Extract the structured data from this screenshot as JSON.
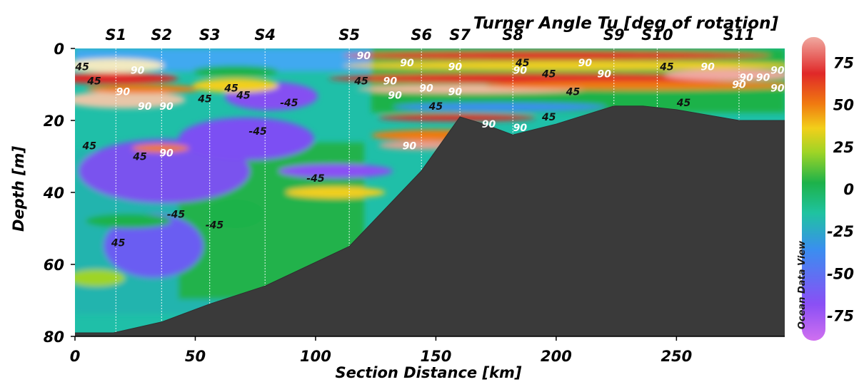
{
  "chart_data": {
    "type": "heatmap",
    "title": "Turner Angle Tu [deg of rotation]",
    "xlabel": "Section Distance [km]",
    "ylabel": "Depth [m]",
    "xlim": [
      0,
      295
    ],
    "ylim": [
      80,
      0
    ],
    "x_ticks": [
      "0",
      "50",
      "100",
      "150",
      "200",
      "250"
    ],
    "x_tick_values": [
      0,
      50,
      100,
      150,
      200,
      250
    ],
    "y_ticks": [
      "0",
      "20",
      "40",
      "60",
      "80"
    ],
    "y_tick_values": [
      0,
      20,
      40,
      60,
      80
    ],
    "colorbar": {
      "ticks": [
        "75",
        "50",
        "25",
        "0",
        "-25",
        "-50",
        "-75"
      ],
      "tick_values": [
        75,
        50,
        25,
        0,
        -25,
        -50,
        -75
      ],
      "range": [
        -90,
        90
      ],
      "watermark": "Ocean Data View",
      "colors": [
        "#d070f0",
        "#8a4ff5",
        "#3a8ef0",
        "#1fc3a0",
        "#1db24a",
        "#9ed426",
        "#f2cf1a",
        "#f07a10",
        "#e02828",
        "#f0a9a0"
      ]
    },
    "stations": [
      {
        "name": "S1",
        "x": 17
      },
      {
        "name": "S2",
        "x": 36
      },
      {
        "name": "S3",
        "x": 56
      },
      {
        "name": "S4",
        "x": 79
      },
      {
        "name": "S5",
        "x": 114
      },
      {
        "name": "S6",
        "x": 144
      },
      {
        "name": "S7",
        "x": 160
      },
      {
        "name": "S8",
        "x": 182
      },
      {
        "name": "S9",
        "x": 224
      },
      {
        "name": "S10",
        "x": 242
      },
      {
        "name": "S11",
        "x": 276
      }
    ],
    "bathymetry": {
      "x": [
        0,
        16,
        36,
        56,
        79,
        114,
        144,
        160,
        170,
        182,
        200,
        224,
        236,
        250,
        276,
        295
      ],
      "depth": [
        79,
        79,
        76,
        71,
        66,
        55,
        34,
        19,
        21,
        24,
        21,
        16,
        16,
        17,
        20,
        20
      ]
    },
    "contour_labels": [
      {
        "text": "45",
        "x": 3,
        "y": 5,
        "color": "dark"
      },
      {
        "text": "45",
        "x": 8,
        "y": 9,
        "color": "dark"
      },
      {
        "text": "90",
        "x": 26,
        "y": 6,
        "color": "light"
      },
      {
        "text": "90",
        "x": 20,
        "y": 12,
        "color": "light"
      },
      {
        "text": "90",
        "x": 29,
        "y": 16,
        "color": "light"
      },
      {
        "text": "90",
        "x": 38,
        "y": 16,
        "color": "light"
      },
      {
        "text": "45",
        "x": 54,
        "y": 14,
        "color": "dark"
      },
      {
        "text": "45",
        "x": 65,
        "y": 11,
        "color": "dark"
      },
      {
        "text": "45",
        "x": 70,
        "y": 13,
        "color": "dark"
      },
      {
        "text": "-45",
        "x": 89,
        "y": 15,
        "color": "dark"
      },
      {
        "text": "-45",
        "x": 76,
        "y": 23,
        "color": "dark"
      },
      {
        "text": "45",
        "x": 6,
        "y": 27,
        "color": "dark"
      },
      {
        "text": "45",
        "x": 27,
        "y": 30,
        "color": "dark"
      },
      {
        "text": "90",
        "x": 38,
        "y": 29,
        "color": "light"
      },
      {
        "text": "-45",
        "x": 100,
        "y": 36,
        "color": "dark"
      },
      {
        "text": "-45",
        "x": 42,
        "y": 46,
        "color": "dark"
      },
      {
        "text": "-45",
        "x": 58,
        "y": 49,
        "color": "dark"
      },
      {
        "text": "45",
        "x": 18,
        "y": 54,
        "color": "dark"
      },
      {
        "text": "90",
        "x": 120,
        "y": 2,
        "color": "light"
      },
      {
        "text": "45",
        "x": 119,
        "y": 9,
        "color": "dark"
      },
      {
        "text": "90",
        "x": 131,
        "y": 9,
        "color": "light"
      },
      {
        "text": "90",
        "x": 138,
        "y": 4,
        "color": "light"
      },
      {
        "text": "90",
        "x": 133,
        "y": 13,
        "color": "light"
      },
      {
        "text": "90",
        "x": 146,
        "y": 11,
        "color": "light"
      },
      {
        "text": "90",
        "x": 158,
        "y": 12,
        "color": "light"
      },
      {
        "text": "90",
        "x": 158,
        "y": 5,
        "color": "light"
      },
      {
        "text": "45",
        "x": 150,
        "y": 16,
        "color": "dark"
      },
      {
        "text": "90",
        "x": 139,
        "y": 27,
        "color": "light"
      },
      {
        "text": "90",
        "x": 185,
        "y": 6,
        "color": "light"
      },
      {
        "text": "45",
        "x": 186,
        "y": 4,
        "color": "dark"
      },
      {
        "text": "45",
        "x": 197,
        "y": 7,
        "color": "dark"
      },
      {
        "text": "90",
        "x": 212,
        "y": 4,
        "color": "light"
      },
      {
        "text": "90",
        "x": 220,
        "y": 7,
        "color": "light"
      },
      {
        "text": "45",
        "x": 207,
        "y": 12,
        "color": "dark"
      },
      {
        "text": "45",
        "x": 246,
        "y": 5,
        "color": "dark"
      },
      {
        "text": "90",
        "x": 263,
        "y": 5,
        "color": "light"
      },
      {
        "text": "90",
        "x": 279,
        "y": 8,
        "color": "light"
      },
      {
        "text": "90",
        "x": 286,
        "y": 8,
        "color": "light"
      },
      {
        "text": "90",
        "x": 292,
        "y": 6,
        "color": "light"
      },
      {
        "text": "90",
        "x": 292,
        "y": 11,
        "color": "light"
      },
      {
        "text": "90",
        "x": 276,
        "y": 10,
        "color": "light"
      },
      {
        "text": "45",
        "x": 253,
        "y": 15,
        "color": "dark"
      },
      {
        "text": "45",
        "x": 197,
        "y": 19,
        "color": "dark"
      },
      {
        "text": "90",
        "x": 172,
        "y": 21,
        "color": "light"
      },
      {
        "text": "90",
        "x": 185,
        "y": 22,
        "color": "light"
      }
    ]
  }
}
